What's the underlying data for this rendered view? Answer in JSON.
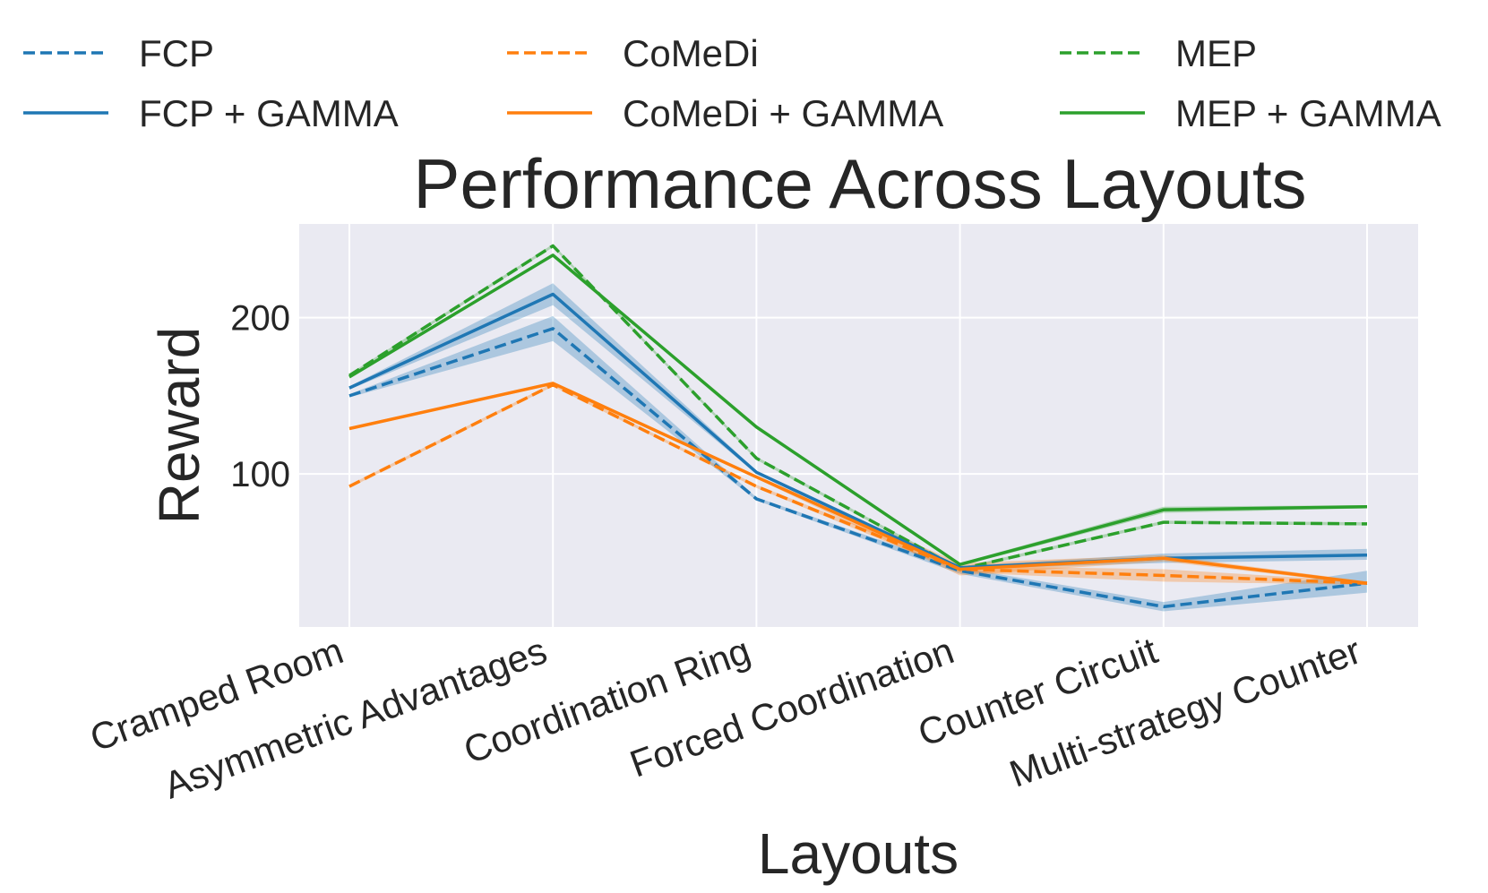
{
  "chart_data": {
    "type": "line",
    "title": "Performance Across Layouts",
    "xlabel": "Layouts",
    "ylabel": "Reward",
    "categories": [
      "Cramped Room",
      "Asymmetric Advantages",
      "Coordination Ring",
      "Forced Coordination",
      "Counter Circuit",
      "Multi-strategy Counter"
    ],
    "ylim": [
      2,
      260
    ],
    "yticks": [
      100,
      200
    ],
    "grid": true,
    "legend_position": "top",
    "series": [
      {
        "name": "FCP",
        "color": "#1f77b4",
        "dashed": true,
        "values": [
          150,
          193,
          84,
          38,
          15,
          30
        ],
        "lower": [
          149,
          185,
          83,
          36,
          12,
          24
        ],
        "upper": [
          151,
          201,
          85,
          40,
          18,
          38
        ]
      },
      {
        "name": "CoMeDi",
        "color": "#ff7f0e",
        "dashed": true,
        "values": [
          92,
          157,
          92,
          39,
          35,
          30
        ],
        "lower": [
          91,
          156,
          91,
          37,
          31,
          29
        ],
        "upper": [
          93,
          158,
          93,
          41,
          39,
          31
        ]
      },
      {
        "name": "MEP",
        "color": "#2ca02c",
        "dashed": true,
        "values": [
          163,
          246,
          110,
          39,
          69,
          68
        ],
        "lower": [
          162,
          245,
          109,
          38,
          68,
          67
        ],
        "upper": [
          164,
          247,
          111,
          40,
          70,
          69
        ]
      },
      {
        "name": "FCP + GAMMA",
        "color": "#1f77b4",
        "dashed": false,
        "values": [
          155,
          215,
          101,
          40,
          46,
          48
        ],
        "lower": [
          154,
          208,
          100,
          39,
          43,
          45
        ],
        "upper": [
          156,
          222,
          102,
          41,
          49,
          52
        ]
      },
      {
        "name": "CoMeDi + GAMMA",
        "color": "#ff7f0e",
        "dashed": false,
        "values": [
          129,
          158,
          98,
          39,
          46,
          30
        ],
        "lower": [
          128,
          157,
          97,
          35,
          44,
          29
        ],
        "upper": [
          130,
          159,
          99,
          43,
          48,
          31
        ]
      },
      {
        "name": "MEP + GAMMA",
        "color": "#2ca02c",
        "dashed": false,
        "values": [
          162,
          240,
          130,
          42,
          77,
          79
        ],
        "lower": [
          161,
          239,
          129,
          41,
          75,
          78
        ],
        "upper": [
          163,
          241,
          131,
          43,
          79,
          80
        ]
      }
    ]
  }
}
